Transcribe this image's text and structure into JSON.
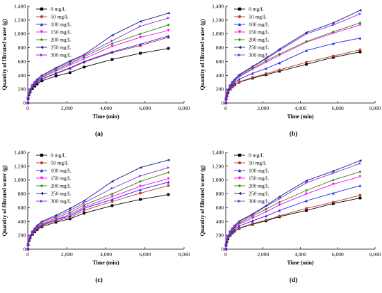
{
  "chart_data": [
    {
      "type": "line",
      "panel_label": "(a)",
      "xlabel": "Time (min)",
      "ylabel": "Quantity of filtrated water (g)",
      "xlim": [
        0,
        8000
      ],
      "ylim": [
        0,
        1400
      ],
      "xticks": [
        0,
        2000,
        4000,
        6000,
        8000
      ],
      "xtick_labels": [
        "0",
        "2,000",
        "4,000",
        "6,000",
        "8,000"
      ],
      "yticks": [
        0,
        200,
        400,
        600,
        800,
        1000,
        1200,
        1400
      ],
      "ytick_labels": [
        "0",
        "200",
        "400",
        "600",
        "800",
        "1,000",
        "1,200",
        "1,400"
      ],
      "legend_position": "top-left",
      "x": [
        0,
        15,
        60,
        120,
        240,
        360,
        480,
        720,
        1440,
        2160,
        2880,
        4320,
        5760,
        7200
      ],
      "series": [
        {
          "name": "0 mg/L",
          "color": "#000000",
          "marker": "square",
          "values": [
            0,
            60,
            120,
            160,
            210,
            245,
            275,
            320,
            390,
            440,
            520,
            630,
            720,
            790
          ]
        },
        {
          "name": "50 mg/L",
          "color": "#c0392b",
          "marker": "circle",
          "values": [
            0,
            65,
            125,
            170,
            225,
            265,
            295,
            345,
            425,
            500,
            590,
            730,
            830,
            950
          ]
        },
        {
          "name": "100 mg/L",
          "color": "#1f1fff",
          "marker": "triangle-up",
          "values": [
            0,
            65,
            130,
            175,
            230,
            270,
            300,
            350,
            430,
            510,
            600,
            740,
            850,
            970
          ]
        },
        {
          "name": "150 mg/L",
          "color": "#ff00ff",
          "marker": "triangle-down",
          "values": [
            0,
            70,
            135,
            180,
            240,
            280,
            315,
            370,
            460,
            550,
            640,
            820,
            950,
            1050
          ]
        },
        {
          "name": "200 mg/L",
          "color": "#2e8b00",
          "marker": "diamond",
          "values": [
            0,
            70,
            140,
            185,
            245,
            290,
            320,
            380,
            480,
            570,
            670,
            860,
            1000,
            1130
          ]
        },
        {
          "name": "250 mg/L",
          "color": "#1a1a8c",
          "marker": "triangle-left",
          "values": [
            0,
            75,
            150,
            200,
            265,
            310,
            345,
            400,
            510,
            610,
            700,
            980,
            1180,
            1300
          ]
        },
        {
          "name": "300 mg/L",
          "color": "#8a2be2",
          "marker": "triangle-right",
          "values": [
            0,
            75,
            145,
            195,
            255,
            300,
            335,
            395,
            500,
            590,
            690,
            900,
            1110,
            1230
          ]
        }
      ]
    },
    {
      "type": "line",
      "panel_label": "(b)",
      "xlabel": "Time (min)",
      "ylabel": "Quantity of filtrated water (g)",
      "xlim": [
        0,
        8000
      ],
      "ylim": [
        0,
        1400
      ],
      "xticks": [
        0,
        2000,
        4000,
        6000,
        8000
      ],
      "xtick_labels": [
        "0",
        "2,000",
        "4,000",
        "6,000",
        "8,000"
      ],
      "yticks": [
        0,
        200,
        400,
        600,
        800,
        1000,
        1200,
        1400
      ],
      "ytick_labels": [
        "0",
        "200",
        "400",
        "600",
        "800",
        "1,000",
        "1,200",
        "1,400"
      ],
      "legend_position": "top-left",
      "x": [
        0,
        15,
        60,
        120,
        240,
        360,
        480,
        720,
        1440,
        2160,
        2880,
        4320,
        5760,
        7200
      ],
      "series": [
        {
          "name": "0 mg/L",
          "color": "#000000",
          "marker": "square",
          "values": [
            0,
            55,
            110,
            150,
            200,
            235,
            260,
            300,
            360,
            410,
            460,
            560,
            660,
            740
          ]
        },
        {
          "name": "50 mg/L",
          "color": "#c0392b",
          "marker": "circle",
          "values": [
            0,
            55,
            115,
            155,
            205,
            240,
            265,
            305,
            370,
            425,
            480,
            590,
            680,
            770
          ]
        },
        {
          "name": "100 mg/L",
          "color": "#1f1fff",
          "marker": "triangle-up",
          "values": [
            0,
            60,
            125,
            170,
            225,
            265,
            295,
            345,
            430,
            500,
            580,
            760,
            860,
            940
          ]
        },
        {
          "name": "150 mg/L",
          "color": "#ff00ff",
          "marker": "triangle-down",
          "values": [
            0,
            65,
            135,
            180,
            240,
            285,
            320,
            380,
            490,
            590,
            690,
            880,
            1010,
            1130
          ]
        },
        {
          "name": "200 mg/L",
          "color": "#2e8b00",
          "marker": "diamond",
          "values": [
            0,
            65,
            135,
            185,
            245,
            290,
            325,
            385,
            500,
            610,
            710,
            890,
            1030,
            1160
          ]
        },
        {
          "name": "250 mg/L",
          "color": "#1a1a8c",
          "marker": "triangle-left",
          "values": [
            0,
            70,
            145,
            195,
            260,
            310,
            345,
            410,
            530,
            650,
            780,
            1020,
            1160,
            1340
          ]
        },
        {
          "name": "300 mg/L",
          "color": "#8a2be2",
          "marker": "triangle-right",
          "values": [
            0,
            70,
            140,
            190,
            255,
            300,
            335,
            400,
            520,
            640,
            760,
            1000,
            1130,
            1290
          ]
        }
      ]
    },
    {
      "type": "line",
      "panel_label": "(c)",
      "xlabel": "Time (min)",
      "ylabel": "Quantity of filtrated water (g)",
      "xlim": [
        0,
        8000
      ],
      "ylim": [
        0,
        1400
      ],
      "xticks": [
        0,
        2000,
        4000,
        6000,
        8000
      ],
      "xtick_labels": [
        "0",
        "2,000",
        "4,000",
        "6,000",
        "8,000"
      ],
      "yticks": [
        0,
        200,
        400,
        600,
        800,
        1000,
        1200,
        1400
      ],
      "ytick_labels": [
        "0",
        "200",
        "400",
        "600",
        "800",
        "1,000",
        "1,200",
        "1,400"
      ],
      "legend_position": "top-left",
      "x": [
        0,
        15,
        60,
        120,
        240,
        360,
        480,
        720,
        1440,
        2160,
        2880,
        4320,
        5760,
        7200
      ],
      "series": [
        {
          "name": "0 mg/L",
          "color": "#000000",
          "marker": "square",
          "values": [
            0,
            60,
            120,
            165,
            215,
            250,
            280,
            325,
            390,
            440,
            520,
            630,
            720,
            790
          ]
        },
        {
          "name": "50 mg/L",
          "color": "#c0392b",
          "marker": "circle",
          "values": [
            0,
            60,
            125,
            170,
            225,
            260,
            290,
            340,
            410,
            460,
            560,
            690,
            810,
            920
          ]
        },
        {
          "name": "100 mg/L",
          "color": "#1f1fff",
          "marker": "triangle-up",
          "values": [
            0,
            65,
            130,
            175,
            230,
            270,
            300,
            350,
            425,
            480,
            590,
            720,
            860,
            970
          ]
        },
        {
          "name": "150 mg/L",
          "color": "#ff00ff",
          "marker": "triangle-down",
          "values": [
            0,
            65,
            130,
            180,
            235,
            275,
            305,
            355,
            430,
            500,
            610,
            760,
            910,
            1020
          ]
        },
        {
          "name": "200 mg/L",
          "color": "#2e8b00",
          "marker": "diamond",
          "values": [
            0,
            70,
            135,
            185,
            240,
            285,
            315,
            365,
            450,
            530,
            640,
            800,
            980,
            1110
          ]
        },
        {
          "name": "250 mg/L",
          "color": "#1a1a8c",
          "marker": "triangle-left",
          "values": [
            0,
            70,
            145,
            195,
            260,
            305,
            345,
            400,
            490,
            590,
            700,
            980,
            1180,
            1290
          ]
        },
        {
          "name": "300 mg/L",
          "color": "#8a2be2",
          "marker": "triangle-right",
          "values": [
            0,
            70,
            140,
            190,
            250,
            295,
            330,
            390,
            470,
            560,
            670,
            880,
            1060,
            1180
          ]
        }
      ]
    },
    {
      "type": "line",
      "panel_label": "(d)",
      "xlabel": "Time (min)",
      "ylabel": "Quantity of filtrated water (g)",
      "xlim": [
        0,
        8000
      ],
      "ylim": [
        0,
        1400
      ],
      "xticks": [
        0,
        2000,
        4000,
        6000,
        8000
      ],
      "xtick_labels": [
        "0",
        "2,000",
        "4,000",
        "6,000",
        "8,000"
      ],
      "yticks": [
        0,
        200,
        400,
        600,
        800,
        1000,
        1200,
        1400
      ],
      "ytick_labels": [
        "0",
        "200",
        "400",
        "600",
        "800",
        "1,000",
        "1,200",
        "1,400"
      ],
      "legend_position": "top-left",
      "x": [
        0,
        15,
        60,
        120,
        240,
        360,
        480,
        720,
        1440,
        2160,
        2880,
        4320,
        5760,
        7200
      ],
      "series": [
        {
          "name": "0 mg/L",
          "color": "#000000",
          "marker": "square",
          "values": [
            0,
            55,
            110,
            150,
            200,
            235,
            260,
            300,
            360,
            410,
            470,
            560,
            660,
            740
          ]
        },
        {
          "name": "50 mg/L",
          "color": "#c0392b",
          "marker": "circle",
          "values": [
            0,
            55,
            115,
            155,
            205,
            240,
            265,
            305,
            370,
            420,
            480,
            590,
            680,
            780
          ]
        },
        {
          "name": "100 mg/L",
          "color": "#1f1fff",
          "marker": "triangle-up",
          "values": [
            0,
            60,
            120,
            165,
            220,
            255,
            285,
            335,
            410,
            480,
            560,
            700,
            810,
            920
          ]
        },
        {
          "name": "150 mg/L",
          "color": "#ff00ff",
          "marker": "triangle-down",
          "values": [
            0,
            65,
            130,
            175,
            235,
            275,
            305,
            360,
            450,
            540,
            640,
            800,
            940,
            1050
          ]
        },
        {
          "name": "200 mg/L",
          "color": "#2e8b00",
          "marker": "diamond",
          "values": [
            0,
            65,
            135,
            180,
            240,
            285,
            315,
            375,
            480,
            580,
            680,
            850,
            1000,
            1120
          ]
        },
        {
          "name": "250 mg/L",
          "color": "#1a1a8c",
          "marker": "triangle-left",
          "values": [
            0,
            70,
            145,
            195,
            260,
            305,
            345,
            405,
            510,
            630,
            760,
            990,
            1130,
            1280
          ]
        },
        {
          "name": "300 mg/L",
          "color": "#8a2be2",
          "marker": "triangle-right",
          "values": [
            0,
            70,
            140,
            190,
            255,
            300,
            335,
            395,
            500,
            620,
            730,
            960,
            1100,
            1240
          ]
        }
      ]
    }
  ]
}
